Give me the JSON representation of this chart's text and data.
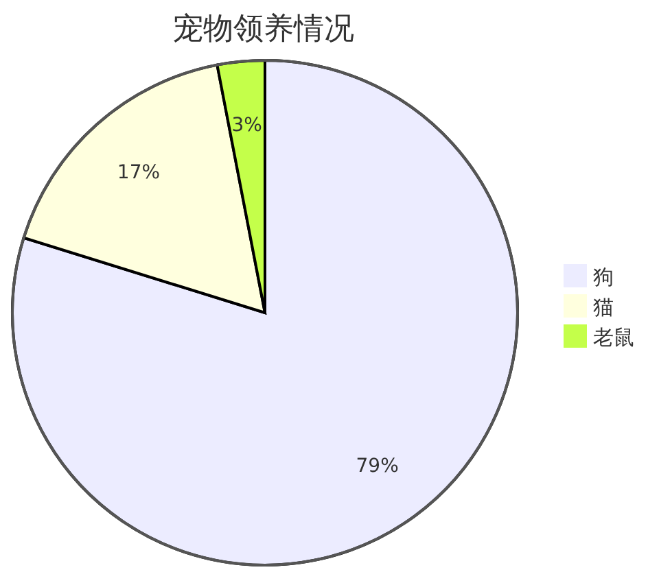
{
  "chart_data": {
    "type": "pie",
    "title": "宠物领养情况",
    "categories": [
      "狗",
      "猫",
      "老鼠"
    ],
    "values": [
      79,
      17,
      3
    ],
    "colors": [
      "#ececff",
      "#ffffde",
      "#c4ff4a"
    ],
    "value_labels": [
      "79%",
      "17%",
      "3%"
    ],
    "legend": "right"
  }
}
